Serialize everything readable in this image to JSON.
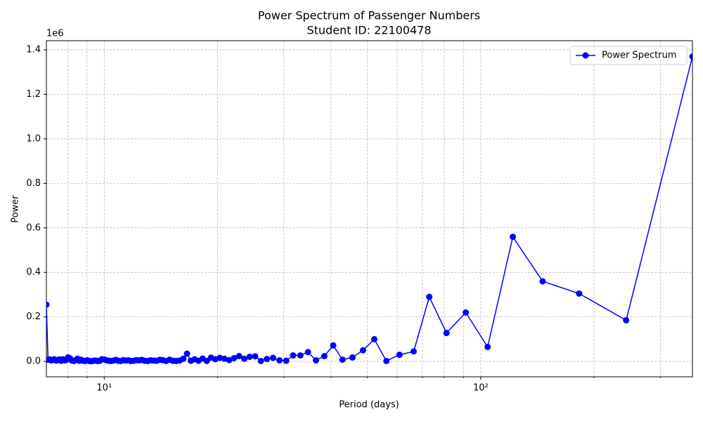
{
  "chart_data": {
    "type": "line",
    "title": "Power Spectrum of Passenger Numbers",
    "subtitle": "Student ID: 22100478",
    "x_label": "Period (days)",
    "y_label": "Power",
    "y_offset_label": "1e6",
    "x_log": true,
    "grid": true,
    "legend": "upper right",
    "x": [
      365,
      243.33,
      182.5,
      146,
      121.67,
      104.29,
      91.25,
      81.11,
      73,
      66.36,
      60.83,
      56.15,
      52.14,
      48.67,
      45.63,
      42.94,
      40.56,
      38.42,
      36.5,
      34.76,
      33.18,
      31.74,
      30.42,
      29.2,
      28.08,
      27.04,
      26.07,
      25.17,
      24.33,
      23.55,
      22.81,
      22.12,
      21.47,
      20.86,
      20.28,
      19.73,
      19.21,
      18.72,
      18.25,
      17.8,
      17.38,
      16.98,
      16.59,
      16.22,
      15.87,
      15.53,
      15.21,
      14.9,
      14.6,
      14.31,
      14.04,
      13.77,
      13.52,
      13.27,
      13.04,
      12.81,
      12.59,
      12.37,
      12.17,
      11.97,
      11.77,
      11.59,
      11.41,
      11.23,
      11.06,
      10.9,
      10.74,
      10.58,
      10.43,
      10.28,
      10.14,
      10,
      9.86,
      9.73,
      9.61,
      9.48,
      9.36,
      9.24,
      9.13,
      9.01,
      8.9,
      8.8,
      8.69,
      8.59,
      8.49,
      8.39,
      8.3,
      8.2,
      8.11,
      8.02,
      7.93,
      7.85,
      7.77,
      7.68,
      7.6,
      7.53,
      7.45,
      7.37,
      7.3,
      7.23,
      7.16,
      7.09,
      7.02
    ],
    "series": [
      {
        "name": "Power Spectrum",
        "color": "#0000ff",
        "values": [
          1370000,
          185000,
          305000,
          360000,
          560000,
          65000,
          220000,
          128000,
          290000,
          45000,
          30000,
          2000,
          100000,
          50000,
          18000,
          8000,
          72000,
          24000,
          5000,
          42000,
          27000,
          27000,
          3000,
          5000,
          16000,
          11000,
          2000,
          23000,
          21000,
          12000,
          24000,
          15000,
          6000,
          12000,
          16000,
          10000,
          17000,
          2000,
          13000,
          3000,
          10000,
          3000,
          35000,
          12000,
          4000,
          2000,
          3000,
          8000,
          2000,
          6000,
          7000,
          3000,
          4000,
          5000,
          2000,
          3000,
          7000,
          5000,
          6000,
          3000,
          2000,
          5000,
          4000,
          6000,
          2000,
          3000,
          7000,
          4000,
          2000,
          3000,
          5000,
          9000,
          10000,
          3000,
          2000,
          4000,
          3000,
          1000,
          2000,
          5000,
          2000,
          3000,
          7000,
          3000,
          12000,
          6000,
          2000,
          4000,
          14000,
          18000,
          7000,
          5000,
          10000,
          3000,
          9000,
          6000,
          4000,
          10000,
          7000,
          5000,
          9000,
          8000,
          255000
        ]
      }
    ],
    "xlim": [
      7.02,
      365
    ],
    "ylim": [
      -69000,
      1441000
    ],
    "xticks": [
      {
        "value": 10,
        "label": "10¹"
      },
      {
        "value": 100,
        "label": "10²"
      }
    ],
    "xminorticks": [
      8,
      9,
      20,
      30,
      40,
      50,
      60,
      70,
      80,
      90,
      200,
      300
    ],
    "yticks": [
      {
        "value": 0,
        "label": "0.0"
      },
      {
        "value": 200000,
        "label": "0.2"
      },
      {
        "value": 400000,
        "label": "0.4"
      },
      {
        "value": 600000,
        "label": "0.6"
      },
      {
        "value": 800000,
        "label": "0.8"
      },
      {
        "value": 1000000,
        "label": "1.0"
      },
      {
        "value": 1200000,
        "label": "1.2"
      },
      {
        "value": 1400000,
        "label": "1.4"
      }
    ]
  }
}
